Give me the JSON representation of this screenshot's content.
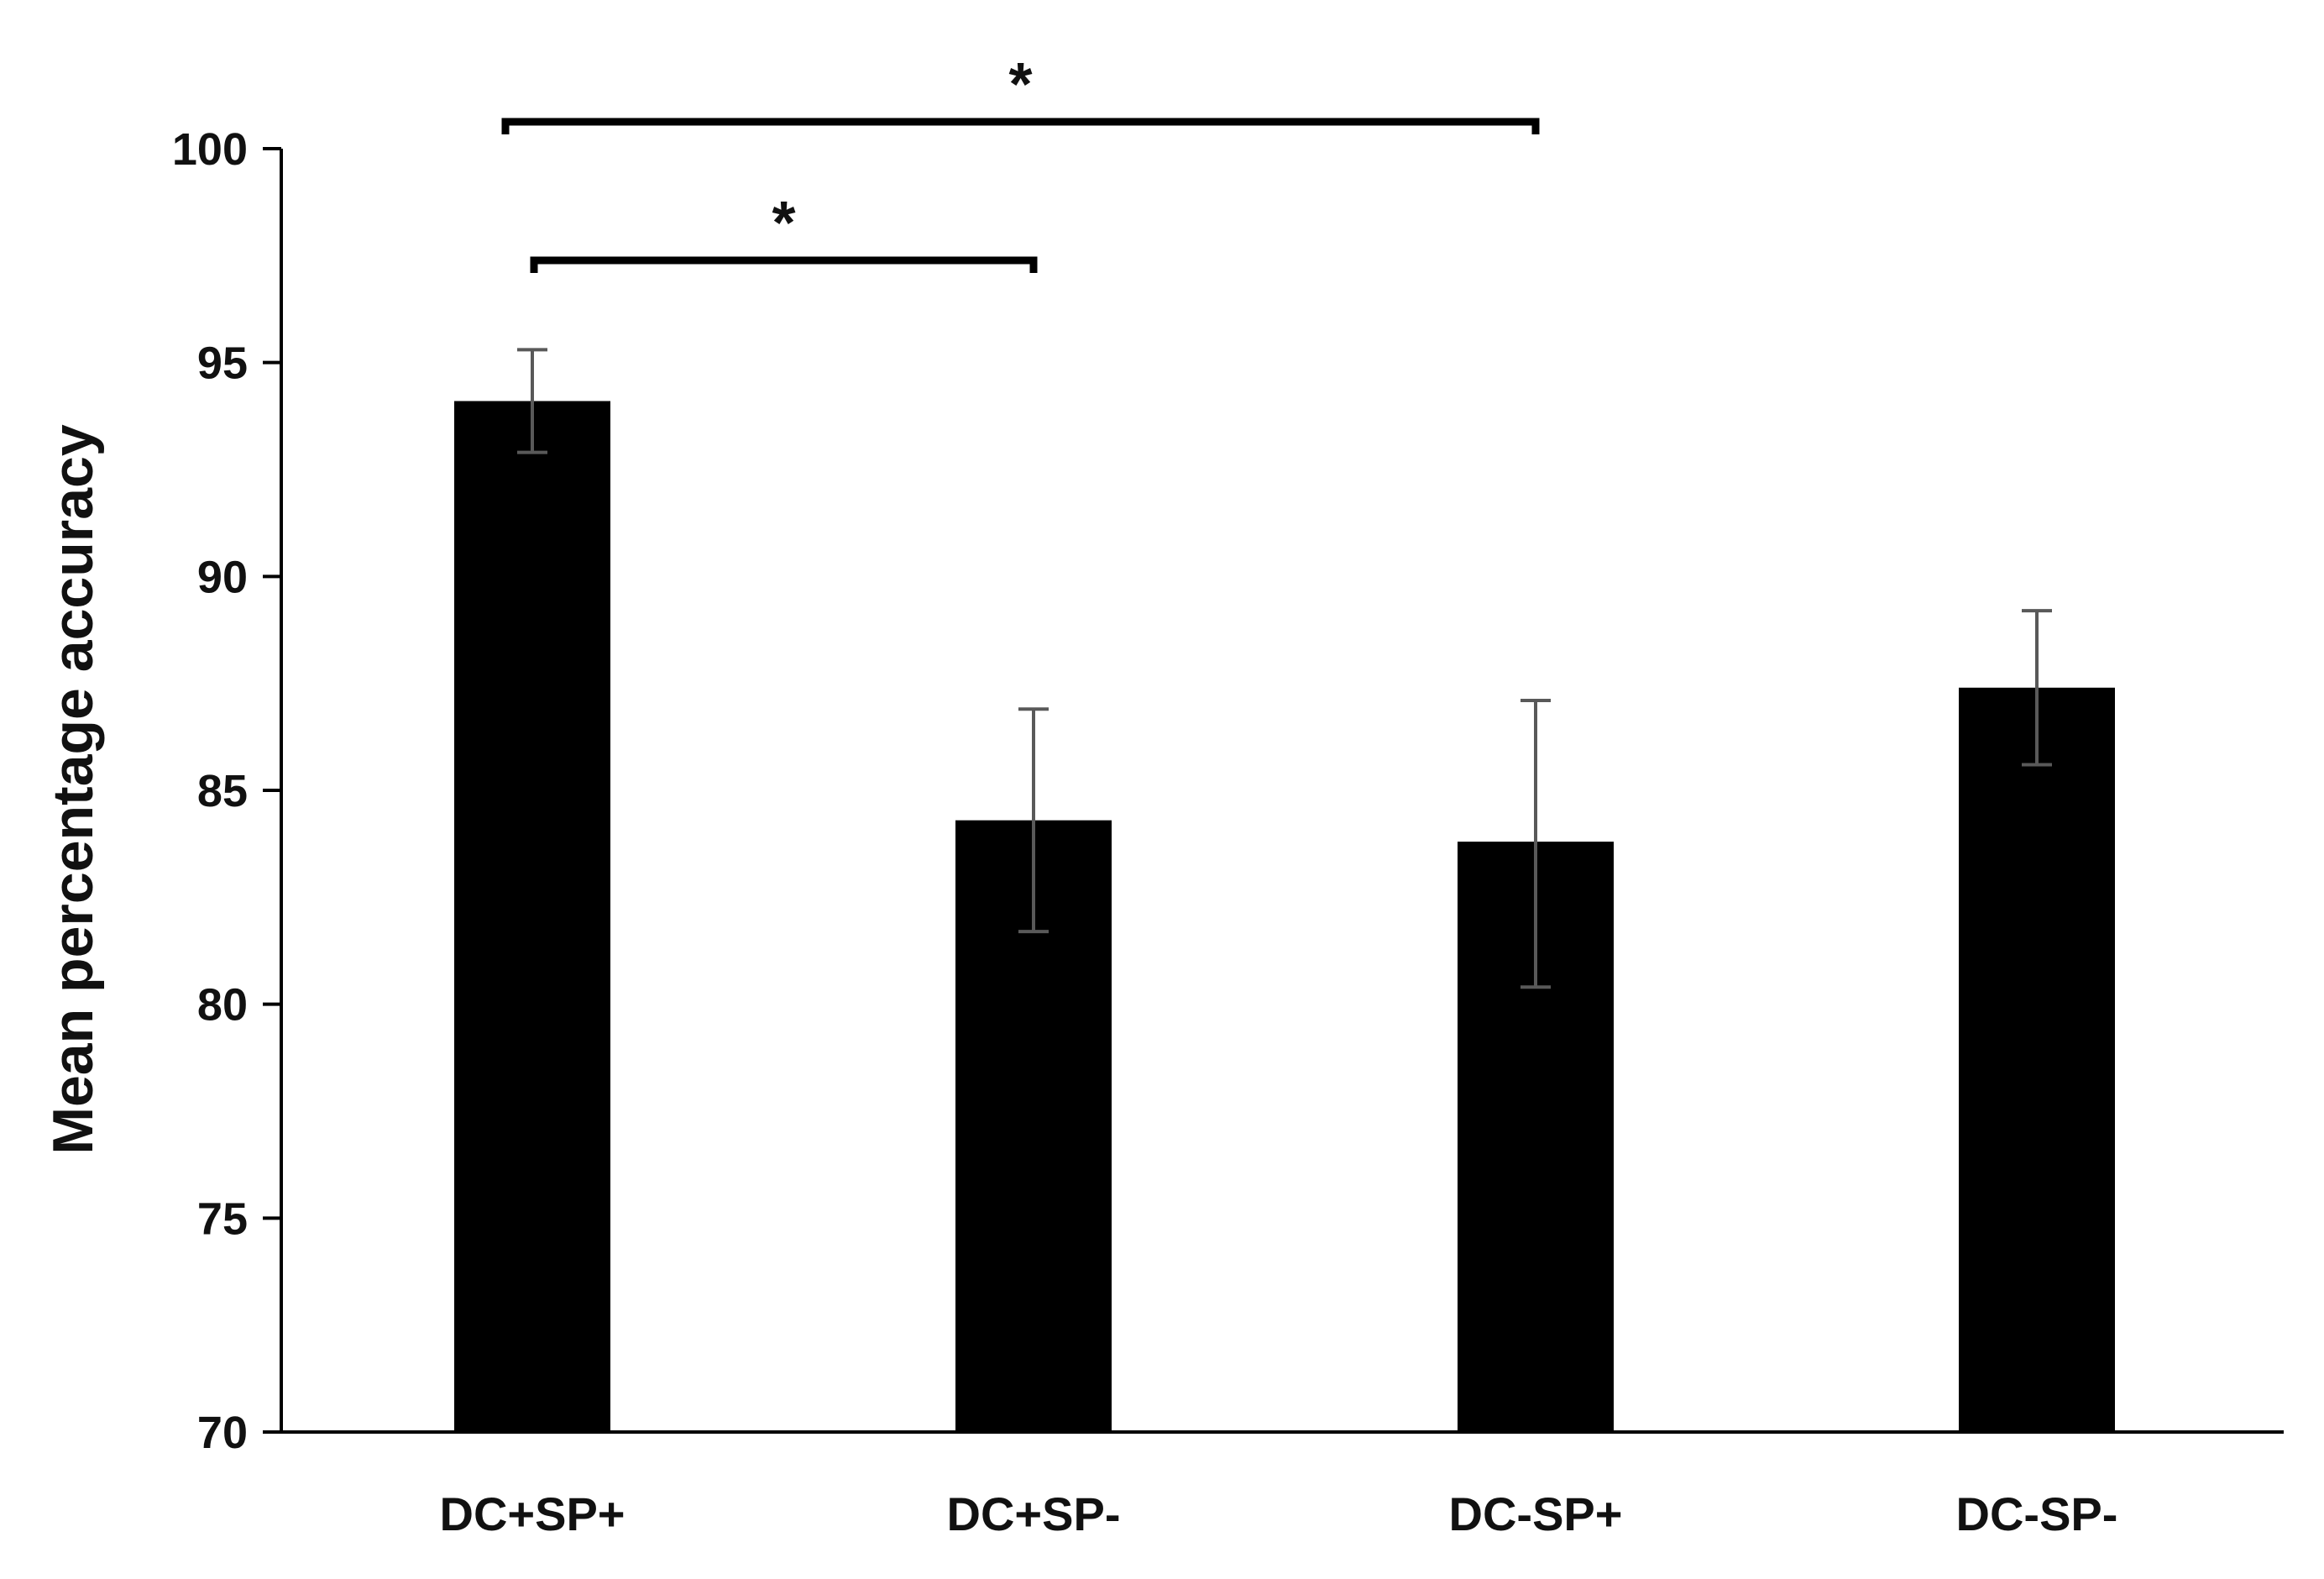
{
  "chart_data": {
    "type": "bar",
    "categories": [
      "DC+SP+",
      "DC+SP-",
      "DC-SP+",
      "DC-SP-"
    ],
    "values": [
      94.1,
      84.3,
      83.8,
      87.4
    ],
    "error_bars": [
      {
        "low": 92.9,
        "high": 95.3
      },
      {
        "low": 81.7,
        "high": 86.9
      },
      {
        "low": 80.4,
        "high": 87.1
      },
      {
        "low": 85.6,
        "high": 89.2
      }
    ],
    "ylabel": "Mean percentage accuracy",
    "ylim": [
      70,
      100
    ],
    "yticks": [
      "70",
      "75",
      "80",
      "85",
      "90",
      "95",
      "100"
    ],
    "significance": [
      {
        "from": 0,
        "to": 1,
        "label": "*"
      },
      {
        "from": 0,
        "to": 2,
        "label": "*"
      }
    ],
    "grid": false,
    "legend": "none",
    "colors": {
      "bar": "#000000",
      "error_bar": "#595959",
      "axis": "#000000"
    }
  }
}
